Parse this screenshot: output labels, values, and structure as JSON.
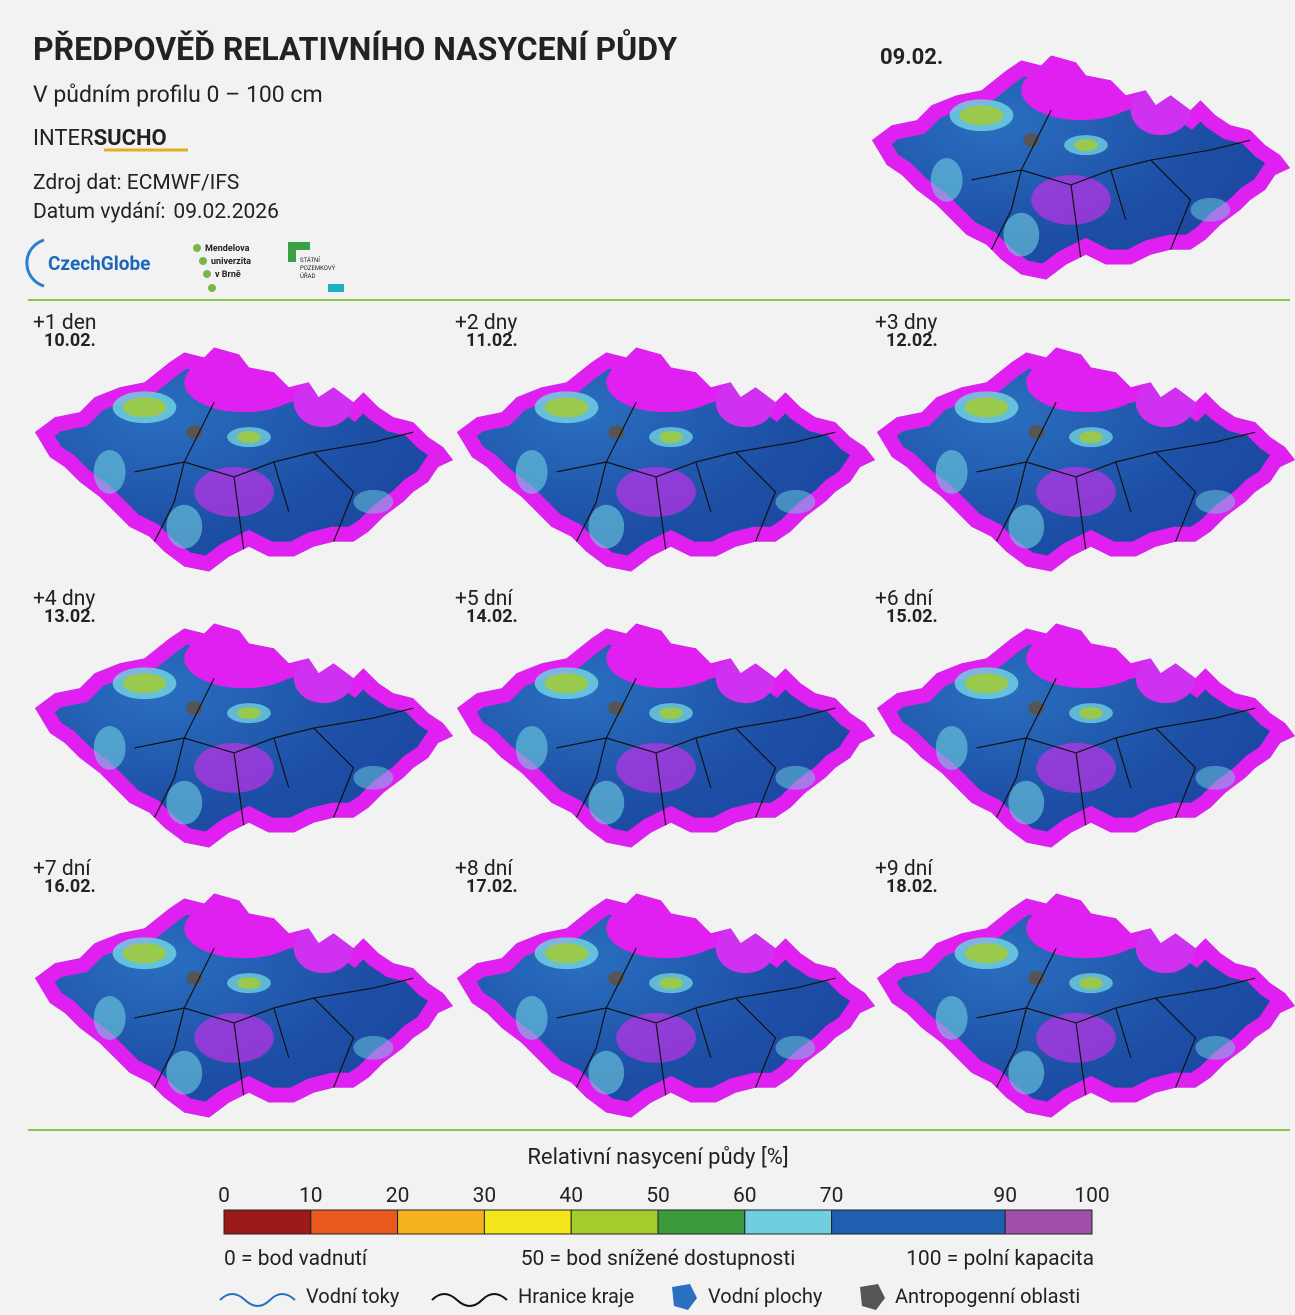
{
  "header": {
    "title": "PŘEDPOVĚĎ RELATIVNÍHO NASYCENÍ PŮDY",
    "subtitle": "V půdním profilu 0 – 100 cm",
    "brand_prefix": "INTER",
    "brand_suffix": "SUCHO",
    "source": "Zdroj dat: ECMWF/IFS",
    "issue_label": "Datum vydání:",
    "issue_date": "09.02.2026"
  },
  "logos": {
    "czechglobe": "CzechGlobe",
    "mendelu": [
      "Mendelova",
      "univerzita",
      "v Brně"
    ],
    "spu": [
      "STÁTNÍ",
      "POZEMKOVÝ",
      "ÚŘAD"
    ]
  },
  "current": {
    "date": "09.02."
  },
  "forecasts": [
    {
      "offset": "+1 den",
      "date": "10.02."
    },
    {
      "offset": "+2 dny",
      "date": "11.02."
    },
    {
      "offset": "+3 dny",
      "date": "12.02."
    },
    {
      "offset": "+4 dny",
      "date": "13.02."
    },
    {
      "offset": "+5 dní",
      "date": "14.02."
    },
    {
      "offset": "+6 dní",
      "date": "15.02."
    },
    {
      "offset": "+7 dní",
      "date": "16.02."
    },
    {
      "offset": "+8 dní",
      "date": "17.02."
    },
    {
      "offset": "+9 dní",
      "date": "18.02."
    }
  ],
  "legend": {
    "title": "Relativní nasycení půdy [%]",
    "ticks": [
      0,
      10,
      20,
      30,
      40,
      50,
      60,
      70,
      90,
      100
    ],
    "colors": [
      "#9b1b1b",
      "#e8581f",
      "#f6b21e",
      "#f2e51a",
      "#a6cc2b",
      "#3a9a3c",
      "#6fcfe0",
      "#1f5fb0",
      "#a04fa8"
    ],
    "notes": [
      "0 = bod vadnutí",
      "50 = bod snížené dostupnosti",
      "100 = polní kapacita"
    ],
    "symbols": [
      "Vodní toky",
      "Hranice kraje",
      "Vodní plochy",
      "Antropogenní oblasti"
    ]
  }
}
